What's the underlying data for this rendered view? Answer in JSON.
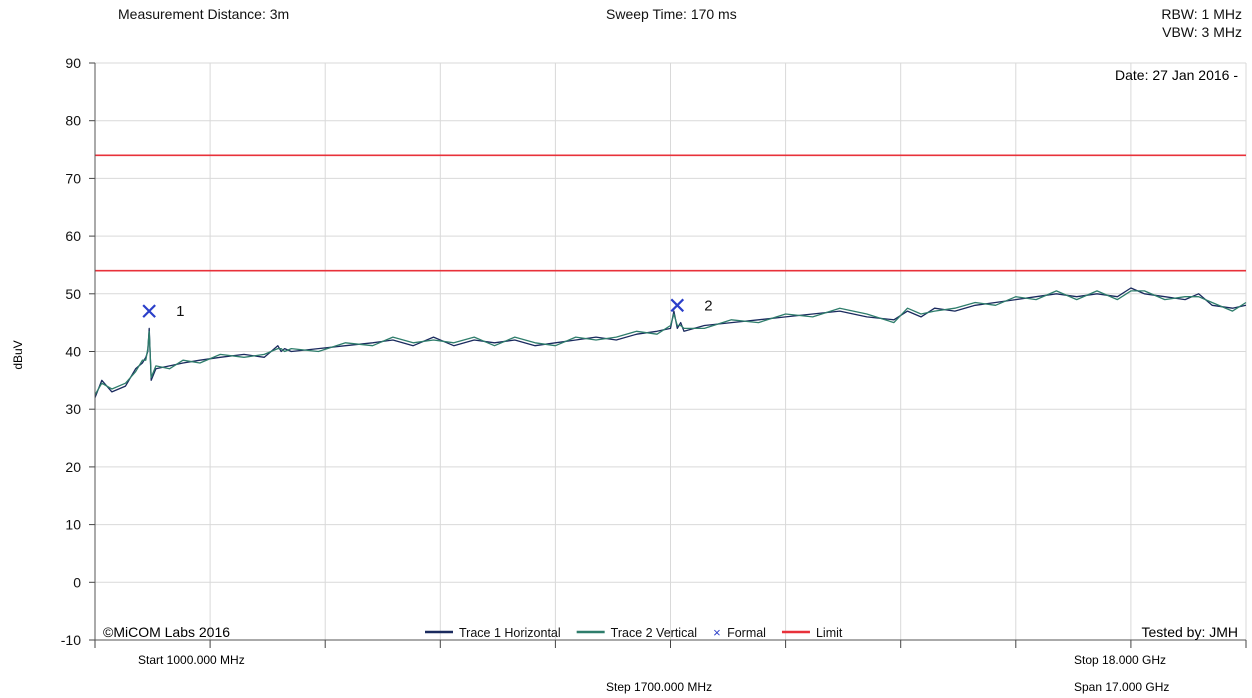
{
  "header": {
    "measurement_distance": "Measurement Distance: 3m",
    "sweep_time": "Sweep Time: 170 ms",
    "rbw": "RBW: 1 MHz",
    "vbw": "VBW: 3 MHz"
  },
  "colors": {
    "trace1": "#1a2a5e",
    "trace2": "#2e7d6b",
    "marker": "#2b3fc9",
    "limit": "#e8313a",
    "grid": "#d9d9d9"
  },
  "chart_data": {
    "type": "line",
    "ylabel": "dBuV",
    "ylim": [
      -10,
      90
    ],
    "yticks": [
      "90",
      "80",
      "70",
      "60",
      "50",
      "40",
      "30",
      "20",
      "10",
      "0",
      "-10"
    ],
    "xlim_mhz": [
      1000,
      18000
    ],
    "x_grid_step_mhz": 1700,
    "date": "Date: 27 Jan 2016 -",
    "copyright": "©MiCOM Labs 2016",
    "tested_by": "Tested by: JMH",
    "x_annotations": {
      "start": "Start 1000.000 MHz",
      "step": "Step 1700.000 MHz",
      "stop": "Stop 18.000 GHz",
      "span": "Span 17.000 GHz"
    },
    "legend": [
      {
        "label": "Trace 1 Horizontal",
        "kind": "line",
        "color": "#1a2a5e"
      },
      {
        "label": "Trace 2 Vertical",
        "kind": "line",
        "color": "#2e7d6b"
      },
      {
        "label": "Formal",
        "kind": "marker",
        "color": "#2b3fc9"
      },
      {
        "label": "Limit",
        "kind": "line",
        "color": "#e8313a"
      }
    ],
    "limits": [
      {
        "name": "Limit",
        "value": 74
      },
      {
        "name": "Limit",
        "value": 54
      }
    ],
    "markers": [
      {
        "label": "1",
        "x_mhz": 1800,
        "y": 47
      },
      {
        "label": "2",
        "x_mhz": 9600,
        "y": 48
      }
    ],
    "series": [
      {
        "name": "Trace 1 Horizontal",
        "x_mhz": [
          1000,
          1100,
          1250,
          1450,
          1600,
          1700,
          1750,
          1780,
          1800,
          1830,
          1900,
          2100,
          2300,
          2550,
          2850,
          3200,
          3500,
          3700,
          3750,
          3800,
          3900,
          4300,
          4700,
          5100,
          5400,
          5700,
          6000,
          6300,
          6600,
          6900,
          7200,
          7500,
          7800,
          8100,
          8400,
          8700,
          9000,
          9300,
          9500,
          9550,
          9600,
          9650,
          9700,
          10000,
          10400,
          10800,
          11200,
          11600,
          12000,
          12400,
          12800,
          13000,
          13200,
          13400,
          13700,
          14000,
          14300,
          14600,
          14900,
          15200,
          15500,
          15800,
          16100,
          16300,
          16500,
          16800,
          17100,
          17300,
          17500,
          17800,
          18000
        ],
        "values": [
          32,
          35,
          33,
          34,
          37,
          38,
          39,
          40,
          44,
          35,
          37,
          37.5,
          38,
          38.5,
          39,
          39.5,
          39,
          41,
          40,
          40.5,
          40,
          40.5,
          41,
          41.5,
          42,
          41,
          42.5,
          41,
          42,
          41.5,
          42,
          41,
          41.5,
          42,
          42.5,
          42,
          43,
          43.5,
          44,
          47,
          44,
          45,
          43.5,
          44.5,
          45,
          45.5,
          46,
          46.5,
          47,
          46,
          45.5,
          47,
          46,
          47.5,
          47,
          48,
          48.5,
          49,
          49.5,
          50,
          49.5,
          50,
          49.5,
          51,
          50,
          49.5,
          49,
          50,
          48,
          47.5,
          48
        ]
      },
      {
        "name": "Trace 2 Vertical",
        "x_mhz": [
          1000,
          1100,
          1250,
          1450,
          1600,
          1700,
          1750,
          1780,
          1800,
          1830,
          1900,
          2100,
          2300,
          2550,
          2850,
          3200,
          3500,
          3700,
          3750,
          3800,
          3900,
          4300,
          4700,
          5100,
          5400,
          5700,
          6000,
          6300,
          6600,
          6900,
          7200,
          7500,
          7800,
          8100,
          8400,
          8700,
          9000,
          9300,
          9500,
          9550,
          9600,
          9650,
          9700,
          10000,
          10400,
          10800,
          11200,
          11600,
          12000,
          12400,
          12800,
          13000,
          13200,
          13400,
          13700,
          14000,
          14300,
          14600,
          14900,
          15200,
          15500,
          15800,
          16100,
          16300,
          16500,
          16800,
          17100,
          17300,
          17500,
          17800,
          18000
        ],
        "values": [
          32.5,
          34.5,
          33.5,
          34.5,
          36.5,
          38.5,
          38.5,
          40.5,
          43.5,
          35.5,
          37.5,
          37,
          38.5,
          38,
          39.5,
          39,
          39.5,
          40.5,
          40.5,
          40,
          40.5,
          40,
          41.5,
          41,
          42.5,
          41.5,
          42,
          41.5,
          42.5,
          41,
          42.5,
          41.5,
          41,
          42.5,
          42,
          42.5,
          43.5,
          43,
          44.5,
          46.5,
          44.5,
          44.5,
          44,
          44,
          45.5,
          45,
          46.5,
          46,
          47.5,
          46.5,
          45,
          47.5,
          46.5,
          47,
          47.5,
          48.5,
          48,
          49.5,
          49,
          50.5,
          49,
          50.5,
          49,
          50.5,
          50.5,
          49,
          49.5,
          49.5,
          48.5,
          47,
          48.5
        ]
      }
    ]
  }
}
